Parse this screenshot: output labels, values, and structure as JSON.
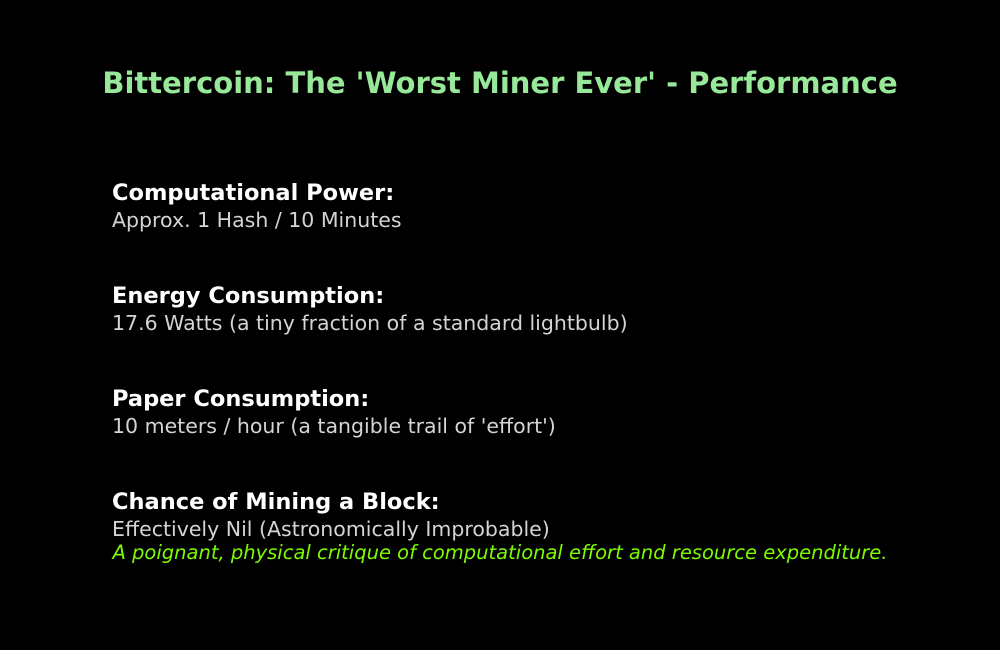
{
  "title": "Bittercoin: The 'Worst Miner Ever' - Performance",
  "stats": [
    {
      "label": "Computational Power:",
      "value": "Approx. 1 Hash / 10 Minutes"
    },
    {
      "label": "Energy Consumption:",
      "value": "17.6 Watts (a tiny fraction of a standard lightbulb)"
    },
    {
      "label": "Paper Consumption:",
      "value": "10 meters / hour (a tangible trail of 'effort')"
    },
    {
      "label": "Chance of Mining a Block:",
      "value": "Effectively Nil (Astronomically Improbable)"
    }
  ],
  "caption": "A poignant, physical critique of computational effort and resource expenditure.",
  "colors": {
    "background": "#000000",
    "title": "#98e89a",
    "label": "#ffffff",
    "value": "#d4d4d4",
    "caption": "#7cfc00"
  }
}
